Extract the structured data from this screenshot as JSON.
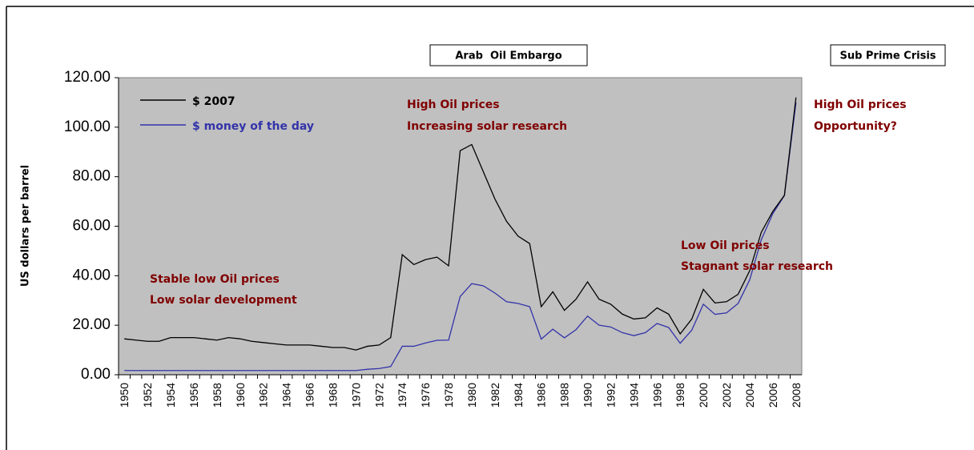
{
  "chart_data": {
    "type": "line",
    "y_axis_label": "US dollars per barrel",
    "categories": [
      "1950",
      null,
      "1952",
      null,
      "1954",
      null,
      "1956",
      null,
      "1958",
      null,
      "1960",
      null,
      "1962",
      null,
      "1964",
      null,
      "1966",
      null,
      "1968",
      null,
      "1970",
      null,
      "1972",
      null,
      "1974",
      null,
      "1976",
      null,
      "1978",
      null,
      "1980",
      null,
      "1982",
      null,
      "1984",
      null,
      "1986",
      null,
      "1988",
      null,
      "1990",
      null,
      "1992",
      null,
      "1994",
      null,
      "1996",
      null,
      "1998",
      null,
      "2000",
      null,
      "2002",
      null,
      "2004",
      null,
      "2006",
      null,
      "2008"
    ],
    "series": [
      {
        "name": "$ 2007",
        "color": "#000000",
        "values": [
          14.5,
          14,
          13.5,
          13.5,
          15,
          15,
          15,
          14.5,
          14,
          15,
          14.5,
          13.5,
          13,
          12.5,
          12,
          12,
          12,
          11.5,
          11,
          11,
          10,
          11.5,
          12,
          15,
          48.5,
          44.5,
          46.5,
          47.5,
          44,
          90.5,
          93,
          82,
          71,
          62,
          56,
          53,
          27.5,
          33.5,
          26,
          30.5,
          37.5,
          30.5,
          28.5,
          24.5,
          22.5,
          23,
          27,
          24.5,
          16.5,
          22.5,
          34.5,
          29,
          29.5,
          32.5,
          42,
          57.5,
          66,
          72.5,
          112
        ]
      },
      {
        "name": "$ money of the day",
        "color": "#3333aa",
        "values": [
          1.7,
          1.7,
          1.7,
          1.7,
          1.7,
          1.7,
          1.7,
          1.7,
          1.7,
          1.7,
          1.7,
          1.7,
          1.7,
          1.7,
          1.7,
          1.7,
          1.7,
          1.7,
          1.7,
          1.7,
          1.7,
          2.2,
          2.5,
          3.3,
          11.5,
          11.5,
          12.8,
          13.9,
          14,
          31.6,
          36.8,
          35.9,
          33,
          29.5,
          28.8,
          27.5,
          14.4,
          18.4,
          14.9,
          18.2,
          23.7,
          20,
          19.3,
          17,
          15.8,
          17,
          20.7,
          19.1,
          12.7,
          18,
          28.5,
          24.4,
          25,
          28.8,
          38.3,
          54.5,
          65.1,
          72.4,
          110
        ]
      }
    ],
    "ylim": [
      0,
      120
    ],
    "yticks": [
      {
        "value": 0,
        "label": "0.00"
      },
      {
        "value": 20,
        "label": "20.00"
      },
      {
        "value": 40,
        "label": "40.00"
      },
      {
        "value": 60,
        "label": "60.00"
      },
      {
        "value": 80,
        "label": "80.00"
      },
      {
        "value": 100,
        "label": "100.00"
      },
      {
        "value": 120,
        "label": "120.00"
      }
    ],
    "boxed_labels": [
      "Arab  Oil Embargo",
      "Sub Prime Crisis"
    ],
    "annotations": [
      "High Oil prices",
      "Increasing solar research",
      "High Oil prices",
      "Opportunity?",
      "Low Oil prices",
      "Stagnant solar research",
      "Stable low Oil prices",
      "Low solar development"
    ],
    "annotation_color": "#800000",
    "plot_background": "#c0c0c0"
  }
}
